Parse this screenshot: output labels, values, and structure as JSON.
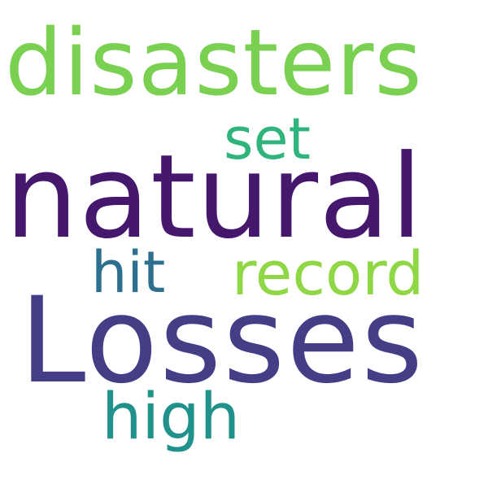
{
  "word_cloud": {
    "words": {
      "disasters": {
        "text": "disasters",
        "color": "#7ad151"
      },
      "set": {
        "text": "set",
        "color": "#2fb47c"
      },
      "natural": {
        "text": "natural",
        "color": "#46186d"
      },
      "hit": {
        "text": "hit",
        "color": "#2c6f8e"
      },
      "record": {
        "text": "record",
        "color": "#8fd744"
      },
      "losses": {
        "text": "Losses",
        "color": "#433e85"
      },
      "high": {
        "text": "high",
        "color": "#21918c"
      }
    }
  }
}
